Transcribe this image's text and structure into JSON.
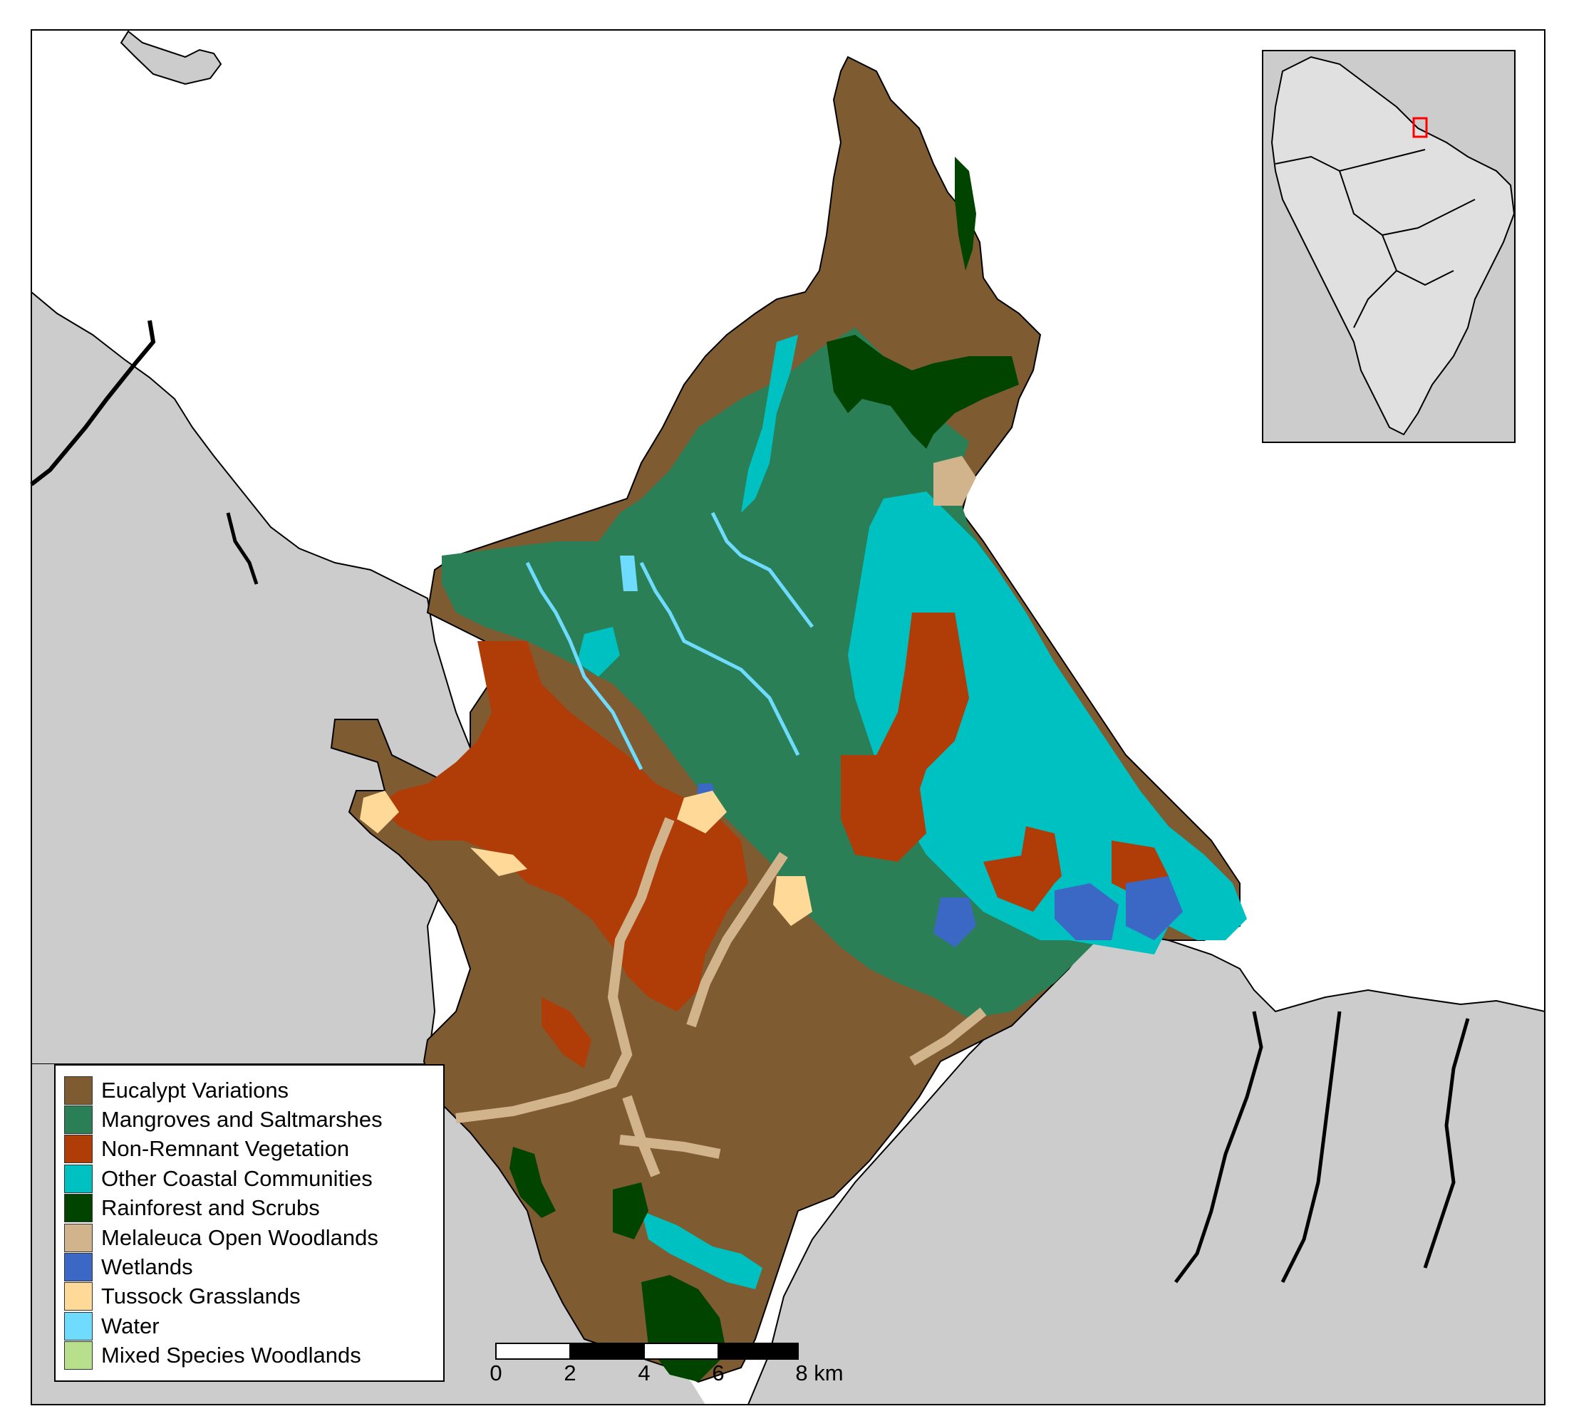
{
  "legend": {
    "items": [
      {
        "label": "Eucalypt Variations",
        "color": "#7f5b31"
      },
      {
        "label": "Mangroves and Saltmarshes",
        "color": "#2b7f57"
      },
      {
        "label": "Non-Remnant Vegetation",
        "color": "#b03c08"
      },
      {
        "label": "Other Coastal Communities",
        "color": "#00c1c1"
      },
      {
        "label": "Rainforest and Scrubs",
        "color": "#004400"
      },
      {
        "label": "Melaleuca Open Woodlands",
        "color": "#d2b48c"
      },
      {
        "label": "Wetlands",
        "color": "#3b67c5"
      },
      {
        "label": "Tussock Grasslands",
        "color": "#ffd998"
      },
      {
        "label": "Water",
        "color": "#6fdcff"
      },
      {
        "label": "Mixed Species Woodlands",
        "color": "#b8e08c"
      }
    ]
  },
  "scalebar": {
    "labels": [
      "0",
      "2",
      "4",
      "6",
      "8 km"
    ]
  },
  "inset": {
    "highlight_color": "#ff0000"
  },
  "colors": {
    "land_outside": "#cccccc",
    "sea": "#ffffff",
    "inset_land": "#e0e0e0"
  }
}
